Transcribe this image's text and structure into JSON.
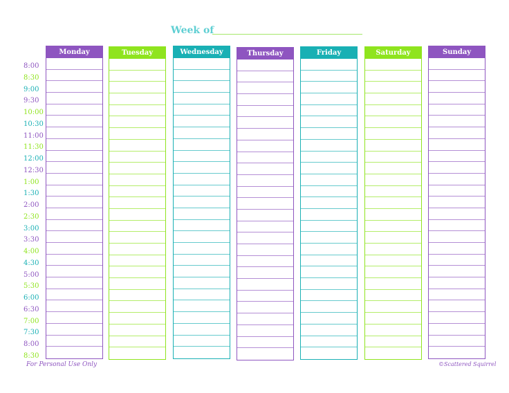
{
  "header": {
    "week_label": "Week of"
  },
  "colors": {
    "purple": "#8e55c0",
    "green": "#8fe41e",
    "teal": "#19b0b4"
  },
  "days": [
    {
      "label": "Monday",
      "color": "#8e55c0"
    },
    {
      "label": "Tuesday",
      "color": "#8fe41e"
    },
    {
      "label": "Wednesday",
      "color": "#19b0b4"
    },
    {
      "label": "Thursday",
      "color": "#8e55c0"
    },
    {
      "label": "Friday",
      "color": "#19b0b4"
    },
    {
      "label": "Saturday",
      "color": "#8fe41e"
    },
    {
      "label": "Sunday",
      "color": "#8e55c0"
    }
  ],
  "times": [
    "8:00",
    "8:30",
    "9:00",
    "9:30",
    "10:00",
    "10:30",
    "11:00",
    "11:30",
    "12:00",
    "12:30",
    "1:00",
    "1:30",
    "2:00",
    "2:30",
    "3:00",
    "3:30",
    "4:00",
    "4:30",
    "5:00",
    "5:30",
    "6:00",
    "6:30",
    "7:00",
    "7:30",
    "8:00",
    "8:30"
  ],
  "footer": {
    "left": "For Personal Use Only",
    "right": "©Scattered Squirrel"
  }
}
